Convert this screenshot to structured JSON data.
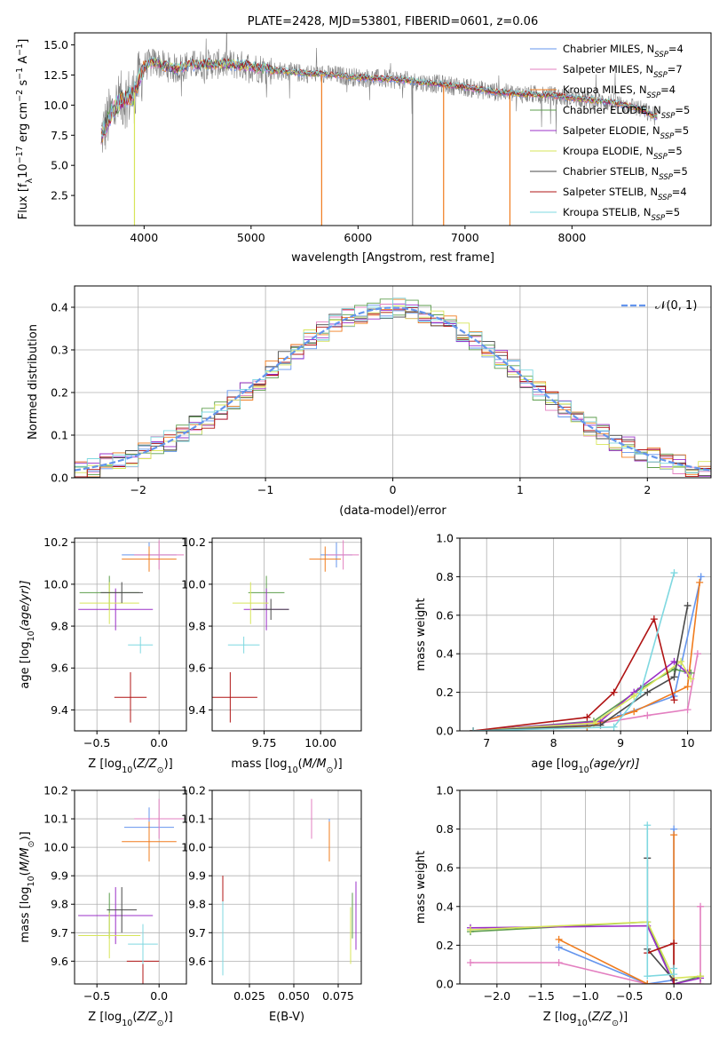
{
  "figure_title": "PLATE=2428, MJD=53801, FIBERID=0601, z=0.06",
  "colors": [
    "#6495ed",
    "#e37fc0",
    "#f07c1e",
    "#5e9e4d",
    "#9b30c8",
    "#d7e55a",
    "#4a4a4a",
    "#b01414",
    "#7fd8e0"
  ],
  "legend_labels": [
    "Chabrier MILES, N$_{SSP}$=4",
    "Salpeter MILES, N$_{SSP}$=7",
    "Kroupa MILES, N$_{SSP}$=4",
    "Chabrier ELODIE, N$_{SSP}$=5",
    "Salpeter ELODIE, N$_{SSP}$=5",
    "Kroupa ELODIE, N$_{SSP}$=5",
    "Chabrier STELIB, N$_{SSP}$=5",
    "Salpeter STELIB, N$_{SSP}$=4",
    "Kroupa STELIB, N$_{SSP}$=5"
  ],
  "legend_display": {
    "names": [
      "Chabrier MILES, N",
      "Salpeter MILES, N",
      "Kroupa MILES, N",
      "Chabrier ELODIE, N",
      "Salpeter ELODIE, N",
      "Kroupa ELODIE, N",
      "Chabrier STELIB, N",
      "Salpeter STELIB, N",
      "Kroupa STELIB, N"
    ],
    "sub": "SSP",
    "values": [
      "=4",
      "=7",
      "=4",
      "=5",
      "=5",
      "=5",
      "=5",
      "=4",
      "=5"
    ]
  },
  "chart_data": [
    {
      "type": "line",
      "name": "spectrum",
      "title": "PLATE=2428, MJD=53801, FIBERID=0601, z=0.06",
      "xlabel": "wavelength [Angstrom, rest frame]",
      "ylabel": "Flux [f$_\\lambda$10$^{-17}$ erg cm$^{-2}$ s$^{-1}$ A$^{-1}$]",
      "ylabel_parts": {
        "a": "Flux [f",
        "b": "λ",
        "c": "10",
        "d": "−17",
        "e": " erg cm",
        "f": "−2",
        "g": " s",
        "h": "−1",
        "i": " A",
        "j": "−1",
        "k": "]"
      },
      "xlim": [
        3350,
        9300
      ],
      "ylim": [
        0.0,
        16.0
      ],
      "xticks": [
        4000,
        5000,
        6000,
        7000,
        8000
      ],
      "yticks": [
        2.5,
        5.0,
        7.5,
        10.0,
        12.5,
        15.0
      ],
      "grid": false,
      "legend": "right",
      "continuum_x": [
        3600,
        3700,
        3800,
        3900,
        4000,
        4100,
        4200,
        4300,
        4400,
        4600,
        4800,
        5000,
        5200,
        5400,
        5600,
        5800,
        6000,
        6200,
        6400,
        6600,
        6800,
        7000,
        7200,
        7400,
        7600,
        7800,
        8000,
        8200,
        8400,
        8600,
        8800
      ],
      "continuum_y": [
        7.5,
        9.5,
        10.5,
        10.8,
        13.2,
        13.6,
        13.2,
        13.0,
        13.3,
        13.4,
        13.4,
        13.2,
        12.9,
        12.7,
        12.6,
        12.5,
        12.3,
        12.2,
        12.1,
        11.9,
        11.7,
        11.5,
        11.2,
        11.0,
        10.9,
        10.8,
        10.6,
        10.4,
        10.2,
        9.8,
        9.0
      ],
      "data_range_x": [
        3600,
        8800
      ],
      "sharp_drops_x": [
        3910,
        5660,
        6510,
        6800,
        7420
      ]
    },
    {
      "type": "bar",
      "name": "residual-histogram",
      "xlabel": "(data-model)/error",
      "ylabel": "Normed distribution",
      "xlim": [
        -2.5,
        2.5
      ],
      "ylim": [
        0.0,
        0.45
      ],
      "xticks": [
        -2,
        -1,
        0,
        1,
        2
      ],
      "yticks": [
        0.0,
        0.1,
        0.2,
        0.3,
        0.4
      ],
      "grid": true,
      "legend": "top-right",
      "legend_label": "$\\mathcal{N}(0,1)$",
      "legend_label_display": "𝒩(0, 1)",
      "bin_width": 0.1,
      "bin_start": -2.5,
      "gaussian": {
        "mean": 0,
        "sigma": 1
      }
    },
    {
      "type": "scatter",
      "name": "age-vs-Z",
      "xlabel": "Z [log$_{10}$(Z/Z$_\\odot$)]",
      "xlabel_display": {
        "a": "Z [log",
        "b": "10",
        "c": "(",
        "d": "Z/Z",
        "e": "⊙",
        "f": ")]"
      },
      "ylabel": "age  [log$_{10}$(age/yr)]",
      "ylabel_display": {
        "a": "age  [log",
        "b": "10",
        "c": "(age/yr)]"
      },
      "xlim": [
        -0.68,
        0.22
      ],
      "ylim": [
        9.3,
        10.22
      ],
      "xticks": [
        -0.5,
        0.0
      ],
      "yticks": [
        9.4,
        9.6,
        9.8,
        10.0,
        10.2
      ],
      "grid": true,
      "points": [
        {
          "x": -0.08,
          "y": 10.14,
          "xerr": 0.22,
          "yerr": 0.06
        },
        {
          "x": 0.0,
          "y": 10.14,
          "xerr": 0.2,
          "yerr": 0.07
        },
        {
          "x": -0.08,
          "y": 10.12,
          "xerr": 0.22,
          "yerr": 0.06
        },
        {
          "x": -0.4,
          "y": 9.96,
          "xerr": 0.24,
          "yerr": 0.08
        },
        {
          "x": -0.35,
          "y": 9.88,
          "xerr": 0.3,
          "yerr": 0.1
        },
        {
          "x": -0.4,
          "y": 9.91,
          "xerr": 0.24,
          "yerr": 0.1
        },
        {
          "x": -0.3,
          "y": 9.96,
          "xerr": 0.17,
          "yerr": 0.05
        },
        {
          "x": -0.23,
          "y": 9.46,
          "xerr": 0.13,
          "yerr": 0.12
        },
        {
          "x": -0.15,
          "y": 9.71,
          "xerr": 0.1,
          "yerr": 0.04
        }
      ]
    },
    {
      "type": "scatter",
      "name": "age-vs-mass",
      "xlabel": "mass [log$_{10}$(M/M$_\\odot$)]",
      "xlabel_display": {
        "a": "mass [log",
        "b": "10",
        "c": "(",
        "d": "M/M",
        "e": "⊙",
        "f": ")]"
      },
      "xlim": [
        9.52,
        10.18
      ],
      "ylim": [
        9.3,
        10.22
      ],
      "xticks": [
        9.75,
        10.0
      ],
      "yticks": [
        9.4,
        9.6,
        9.8,
        10.0,
        10.2
      ],
      "grid": true,
      "points": [
        {
          "x": 10.07,
          "y": 10.14,
          "xerr": 0.07,
          "yerr": 0.06
        },
        {
          "x": 10.1,
          "y": 10.14,
          "xerr": 0.07,
          "yerr": 0.07
        },
        {
          "x": 10.02,
          "y": 10.12,
          "xerr": 0.07,
          "yerr": 0.06
        },
        {
          "x": 9.76,
          "y": 9.96,
          "xerr": 0.08,
          "yerr": 0.08
        },
        {
          "x": 9.76,
          "y": 9.88,
          "xerr": 0.1,
          "yerr": 0.1
        },
        {
          "x": 9.69,
          "y": 9.91,
          "xerr": 0.08,
          "yerr": 0.1
        },
        {
          "x": 9.78,
          "y": 9.88,
          "xerr": 0.08,
          "yerr": 0.05
        },
        {
          "x": 9.6,
          "y": 9.46,
          "xerr": 0.12,
          "yerr": 0.12
        },
        {
          "x": 9.66,
          "y": 9.71,
          "xerr": 0.07,
          "yerr": 0.04
        }
      ]
    },
    {
      "type": "line",
      "name": "mass-weight-vs-age",
      "xlabel": "age  [log$_{10}$(age/yr)]",
      "xlabel_display": {
        "a": "age  [log",
        "b": "10",
        "c": "(age/yr)]"
      },
      "ylabel": "mass weight",
      "xlim": [
        6.6,
        10.35
      ],
      "ylim": [
        0.0,
        1.0
      ],
      "xticks": [
        7,
        8,
        9,
        10
      ],
      "yticks": [
        0.0,
        0.2,
        0.4,
        0.6,
        0.8,
        1.0
      ],
      "grid": true,
      "series": [
        {
          "x": [
            6.8,
            8.5,
            9.0,
            9.8,
            10.2
          ],
          "y": [
            0.0,
            0.02,
            0.08,
            0.18,
            0.8
          ]
        },
        {
          "x": [
            6.8,
            8.7,
            9.4,
            10.0,
            10.15
          ],
          "y": [
            0.0,
            0.04,
            0.08,
            0.11,
            0.4
          ]
        },
        {
          "x": [
            6.8,
            8.5,
            9.2,
            10.0,
            10.18
          ],
          "y": [
            0.0,
            0.02,
            0.1,
            0.23,
            0.77
          ]
        },
        {
          "x": [
            6.8,
            8.6,
            9.3,
            9.8,
            10.05
          ],
          "y": [
            0.0,
            0.05,
            0.22,
            0.32,
            0.3
          ]
        },
        {
          "x": [
            6.8,
            8.7,
            9.2,
            9.8,
            10.0
          ],
          "y": [
            0.0,
            0.05,
            0.2,
            0.36,
            0.3
          ]
        },
        {
          "x": [
            6.8,
            8.6,
            9.2,
            9.9,
            10.05
          ],
          "y": [
            0.0,
            0.04,
            0.18,
            0.36,
            0.27
          ]
        },
        {
          "x": [
            6.8,
            8.7,
            9.4,
            9.8,
            10.0
          ],
          "y": [
            0.0,
            0.03,
            0.2,
            0.28,
            0.65
          ]
        },
        {
          "x": [
            6.8,
            8.5,
            8.9,
            9.5,
            9.8
          ],
          "y": [
            0.0,
            0.07,
            0.2,
            0.58,
            0.16
          ]
        },
        {
          "x": [
            6.8,
            8.9,
            9.3,
            9.8
          ],
          "y": [
            0.0,
            0.02,
            0.2,
            0.82
          ]
        }
      ]
    },
    {
      "type": "scatter",
      "name": "mass-vs-Z",
      "xlabel": "Z [log$_{10}$(Z/Z$_\\odot$)]",
      "xlabel_display": {
        "a": "Z [log",
        "b": "10",
        "c": "(",
        "d": "Z/Z",
        "e": "⊙",
        "f": ")]"
      },
      "ylabel": "mass [log$_{10}$(M/M$_\\odot$)]",
      "ylabel_display": {
        "a": "mass [log",
        "b": "10",
        "c": "(",
        "d": "M/M",
        "e": "⊙",
        "f": ")]"
      },
      "xlim": [
        -0.68,
        0.22
      ],
      "ylim": [
        9.52,
        10.2
      ],
      "xticks": [
        -0.5,
        0.0
      ],
      "yticks": [
        9.6,
        9.7,
        9.8,
        9.9,
        10.0,
        10.1,
        10.2
      ],
      "grid": true,
      "points": [
        {
          "x": -0.08,
          "y": 10.07,
          "xerr": 0.2,
          "yerr": 0.07
        },
        {
          "x": 0.0,
          "y": 10.1,
          "xerr": 0.2,
          "yerr": 0.07
        },
        {
          "x": -0.08,
          "y": 10.02,
          "xerr": 0.22,
          "yerr": 0.07
        },
        {
          "x": -0.4,
          "y": 9.76,
          "xerr": 0.25,
          "yerr": 0.08
        },
        {
          "x": -0.35,
          "y": 9.76,
          "xerr": 0.3,
          "yerr": 0.1
        },
        {
          "x": -0.4,
          "y": 9.69,
          "xerr": 0.25,
          "yerr": 0.08
        },
        {
          "x": -0.3,
          "y": 9.78,
          "xerr": 0.12,
          "yerr": 0.08
        },
        {
          "x": -0.13,
          "y": 9.6,
          "xerr": 0.13,
          "yerr": 0.12
        },
        {
          "x": -0.13,
          "y": 9.66,
          "xerr": 0.12,
          "yerr": 0.07
        }
      ]
    },
    {
      "type": "scatter",
      "name": "mass-vs-EBV",
      "xlabel": "E(B-V)",
      "xlim": [
        0.004,
        0.088
      ],
      "ylim": [
        9.52,
        10.2
      ],
      "xticks": [
        0.025,
        0.05,
        0.075
      ],
      "xtick_labels": [
        "0.025",
        "0.050",
        "0.075"
      ],
      "yticks": [
        9.6,
        9.7,
        9.8,
        9.9,
        10.0,
        10.1,
        10.2
      ],
      "grid": true,
      "points": [
        {
          "x": 0.07,
          "y": 10.03,
          "yerr": 0.07
        },
        {
          "x": 0.06,
          "y": 10.1,
          "yerr": 0.07
        },
        {
          "x": 0.07,
          "y": 10.02,
          "yerr": 0.07
        },
        {
          "x": 0.083,
          "y": 9.76,
          "yerr": 0.08
        },
        {
          "x": 0.085,
          "y": 9.76,
          "yerr": 0.12
        },
        {
          "x": 0.082,
          "y": 9.69,
          "yerr": 0.1
        },
        {
          "x": 0.01,
          "y": 9.72,
          "yerr": 0.08
        },
        {
          "x": 0.01,
          "y": 9.8,
          "yerr": 0.1
        },
        {
          "x": 0.01,
          "y": 9.68,
          "yerr": 0.13
        }
      ]
    },
    {
      "type": "line",
      "name": "mass-weight-vs-Z",
      "xlabel": "Z [log$_{10}$(Z/Z$_\\odot$)]",
      "xlabel_display": {
        "a": "Z [log",
        "b": "10",
        "c": "(",
        "d": "Z/Z",
        "e": "⊙",
        "f": ")]"
      },
      "ylabel": "mass weight",
      "xlim": [
        -2.42,
        0.42
      ],
      "ylim": [
        0.0,
        1.0
      ],
      "xticks": [
        -2.0,
        -1.5,
        -1.0,
        -0.5,
        0.0
      ],
      "yticks": [
        0.0,
        0.2,
        0.4,
        0.6,
        0.8,
        1.0
      ],
      "grid": true,
      "series": [
        {
          "x": [
            -1.3,
            -0.3,
            0.0,
            0.0
          ],
          "y": [
            0.19,
            0.0,
            0.02,
            0.8
          ]
        },
        {
          "x": [
            -2.3,
            -1.3,
            -0.3,
            0.3,
            0.3
          ],
          "y": [
            0.11,
            0.11,
            0.0,
            0.0,
            0.4
          ]
        },
        {
          "x": [
            -1.3,
            -0.3,
            0.0,
            0.0
          ],
          "y": [
            0.23,
            0.0,
            0.0,
            0.77
          ]
        },
        {
          "x": [
            -2.3,
            -0.3,
            0.0,
            0.3
          ],
          "y": [
            0.27,
            0.32,
            0.0,
            0.04
          ]
        },
        {
          "x": [
            -2.3,
            -0.3,
            0.0,
            0.3
          ],
          "y": [
            0.29,
            0.3,
            0.0,
            0.03
          ]
        },
        {
          "x": [
            -2.3,
            -0.3,
            0.0,
            0.3
          ],
          "y": [
            0.28,
            0.32,
            0.03,
            0.04
          ]
        },
        {
          "x": [
            -0.3,
            -0.3,
            0.0
          ],
          "y": [
            0.65,
            0.18,
            0.02
          ]
        },
        {
          "x": [
            -0.3,
            0.0,
            0.0
          ],
          "y": [
            0.16,
            0.21,
            0.0
          ]
        },
        {
          "x": [
            -0.3,
            -0.3,
            0.0,
            0.0
          ],
          "y": [
            0.82,
            0.04,
            0.05,
            0.08
          ]
        }
      ]
    }
  ]
}
